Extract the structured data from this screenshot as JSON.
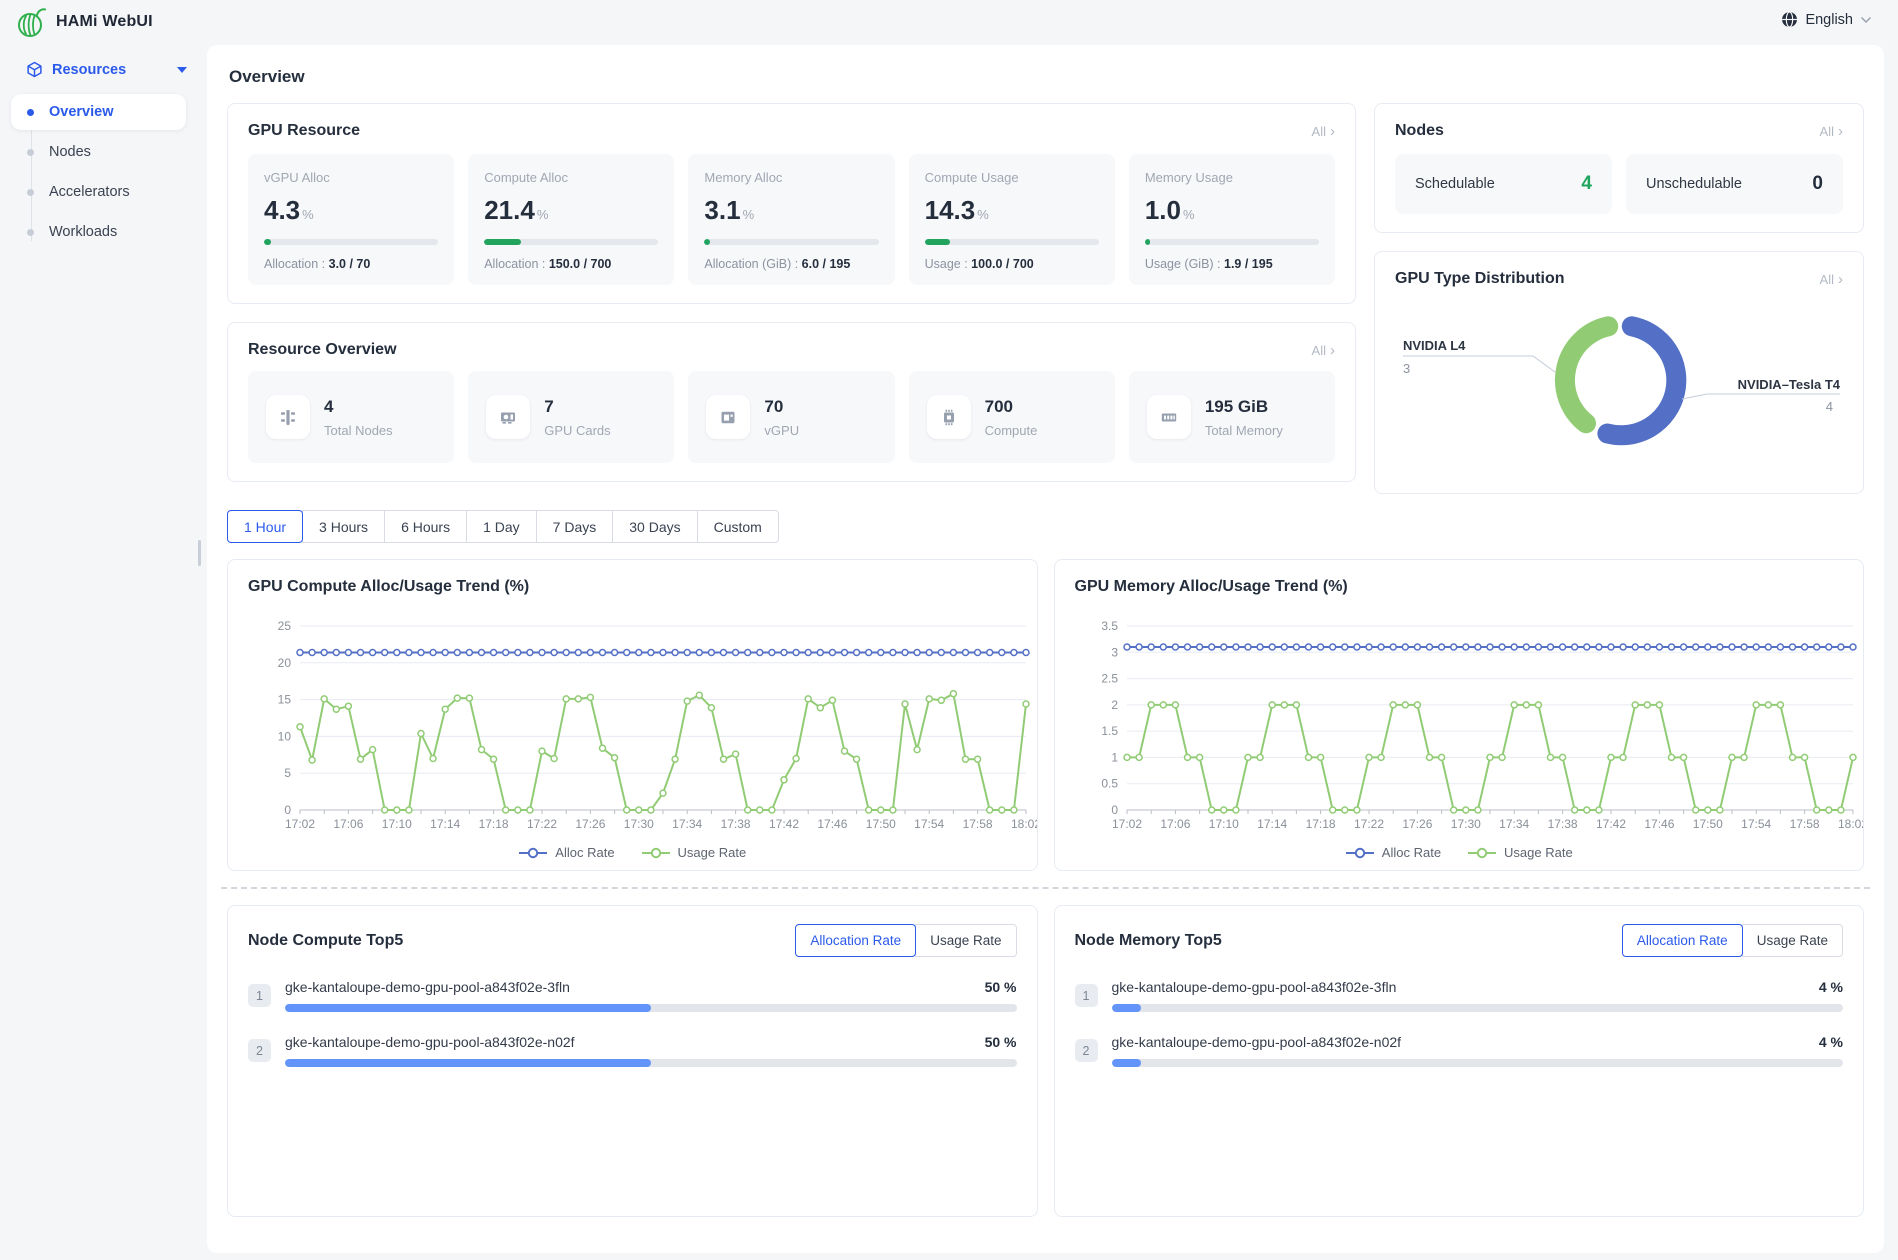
{
  "colors": {
    "accent_blue": "#2b5aeb",
    "success_green": "#22a45f",
    "chart_blue": "#5470c6",
    "chart_green": "#91cc75",
    "bar_blue": "#6394f9"
  },
  "header": {
    "app_title": "HAMi WebUI",
    "language": "English",
    "logo_icon": "hami-melon-logo",
    "language_icon": "globe-icon"
  },
  "sidebar": {
    "group": {
      "label": "Resources",
      "icon": "cube-icon"
    },
    "items": [
      {
        "label": "Overview",
        "active": true
      },
      {
        "label": "Nodes",
        "active": false
      },
      {
        "label": "Accelerators",
        "active": false
      },
      {
        "label": "Workloads",
        "active": false
      }
    ]
  },
  "page": {
    "title": "Overview"
  },
  "common": {
    "all": "All",
    "chevron": "›"
  },
  "gpu_resource": {
    "title": "GPU Resource",
    "stats": [
      {
        "label": "vGPU Alloc",
        "value": "4.3",
        "unit": "%",
        "percent": 4.3,
        "detail_label": "Allocation : ",
        "detail_value": "3.0 / 70"
      },
      {
        "label": "Compute Alloc",
        "value": "21.4",
        "unit": "%",
        "percent": 21.4,
        "detail_label": "Allocation : ",
        "detail_value": "150.0 / 700"
      },
      {
        "label": "Memory Alloc",
        "value": "3.1",
        "unit": "%",
        "percent": 3.1,
        "detail_label": "Allocation (GiB) : ",
        "detail_value": "6.0 / 195"
      },
      {
        "label": "Compute Usage",
        "value": "14.3",
        "unit": "%",
        "percent": 14.3,
        "detail_label": "Usage : ",
        "detail_value": "100.0 / 700"
      },
      {
        "label": "Memory Usage",
        "value": "1.0",
        "unit": "%",
        "percent": 1.0,
        "detail_label": "Usage (GiB) : ",
        "detail_value": "1.9 / 195"
      }
    ]
  },
  "nodes_card": {
    "title": "Nodes",
    "tiles": [
      {
        "label": "Schedulable",
        "value": "4"
      },
      {
        "label": "Unschedulable",
        "value": "0"
      }
    ]
  },
  "gpu_type": {
    "title": "GPU Type Distribution",
    "items": [
      {
        "name": "NVIDIA L4",
        "value": "3"
      },
      {
        "name": "NVIDIA–Tesla T4",
        "value": "4"
      }
    ]
  },
  "resource_overview": {
    "title": "Resource Overview",
    "items": [
      {
        "icon": "node-icon",
        "value": "4",
        "label": "Total Nodes"
      },
      {
        "icon": "gpu-card-icon",
        "value": "7",
        "label": "GPU Cards"
      },
      {
        "icon": "vgpu-icon",
        "value": "70",
        "label": "vGPU"
      },
      {
        "icon": "chip-icon",
        "value": "700",
        "label": "Compute"
      },
      {
        "icon": "memory-icon",
        "value": "195 GiB",
        "label": "Total Memory"
      }
    ]
  },
  "time_tabs": {
    "options": [
      "1 Hour",
      "3 Hours",
      "6 Hours",
      "1 Day",
      "7 Days",
      "30 Days",
      "Custom"
    ],
    "active_index": 0
  },
  "top5": {
    "toggle": {
      "allocation": "Allocation Rate",
      "usage": "Usage Rate",
      "active": "allocation"
    },
    "cards": [
      {
        "title": "Node Compute Top5",
        "rows": [
          {
            "rank": "1",
            "name": "gke-kantaloupe-demo-gpu-pool-a843f02e-3fln",
            "value": "50 %",
            "percent": 50
          },
          {
            "rank": "2",
            "name": "gke-kantaloupe-demo-gpu-pool-a843f02e-n02f",
            "value": "50 %",
            "percent": 50
          }
        ]
      },
      {
        "title": "Node Memory Top5",
        "rows": [
          {
            "rank": "1",
            "name": "gke-kantaloupe-demo-gpu-pool-a843f02e-3fln",
            "value": "4 %",
            "percent": 4
          },
          {
            "rank": "2",
            "name": "gke-kantaloupe-demo-gpu-pool-a843f02e-n02f",
            "value": "4 %",
            "percent": 4
          }
        ]
      }
    ]
  },
  "chart_data": [
    {
      "type": "pie",
      "title": "GPU Type Distribution",
      "labels": [
        "NVIDIA–Tesla T4",
        "NVIDIA L4"
      ],
      "values": [
        4,
        3
      ],
      "colors": [
        "#5470c6",
        "#91cc75"
      ],
      "donut": true
    },
    {
      "type": "line",
      "title": "GPU Compute Alloc/Usage Trend (%)",
      "points": 61,
      "interval_minutes": 1,
      "x_tick_labels": [
        "17:02",
        "17:06",
        "17:10",
        "17:14",
        "17:18",
        "17:22",
        "17:26",
        "17:30",
        "17:34",
        "17:38",
        "17:42",
        "17:46",
        "17:50",
        "17:54",
        "17:58",
        "18:02"
      ],
      "ylim": [
        0,
        25
      ],
      "y_ticks": [
        0,
        5,
        10,
        15,
        20,
        25
      ],
      "legend_position": "bottom",
      "series": [
        {
          "name": "Alloc Rate",
          "color": "#5470c6",
          "values_constant": 21.4
        },
        {
          "name": "Usage Rate",
          "color": "#91cc75",
          "values": [
            11.3,
            6.8,
            15.1,
            13.7,
            14.1,
            6.9,
            8.2,
            0,
            0,
            0,
            10.4,
            7.0,
            13.7,
            15.2,
            15.2,
            8.2,
            6.9,
            0,
            0,
            0,
            8.0,
            7.0,
            15.1,
            15.1,
            15.3,
            8.4,
            7.1,
            0,
            0,
            0,
            2.3,
            6.9,
            14.8,
            15.6,
            13.9,
            6.9,
            7.6,
            0,
            0,
            0,
            4.1,
            7.0,
            15.1,
            13.9,
            14.9,
            8.0,
            6.9,
            0,
            0,
            0,
            14.4,
            8.2,
            15.1,
            14.9,
            15.8,
            6.9,
            6.9,
            0,
            0,
            0,
            14.4
          ]
        }
      ]
    },
    {
      "type": "line",
      "title": "GPU Memory Alloc/Usage Trend (%)",
      "points": 61,
      "interval_minutes": 1,
      "x_tick_labels": [
        "17:02",
        "17:06",
        "17:10",
        "17:14",
        "17:18",
        "17:22",
        "17:26",
        "17:30",
        "17:34",
        "17:38",
        "17:42",
        "17:46",
        "17:50",
        "17:54",
        "17:58",
        "18:02"
      ],
      "ylim": [
        0,
        3.5
      ],
      "y_ticks": [
        0,
        0.5,
        1,
        1.5,
        2,
        2.5,
        3,
        3.5
      ],
      "legend_position": "bottom",
      "series": [
        {
          "name": "Alloc Rate",
          "color": "#5470c6",
          "values_constant": 3.1
        },
        {
          "name": "Usage Rate",
          "color": "#91cc75",
          "values": [
            1,
            1,
            2,
            2,
            2,
            1,
            1,
            0,
            0,
            0,
            1,
            1,
            2,
            2,
            2,
            1,
            1,
            0,
            0,
            0,
            1,
            1,
            2,
            2,
            2,
            1,
            1,
            0,
            0,
            0,
            1,
            1,
            2,
            2,
            2,
            1,
            1,
            0,
            0,
            0,
            1,
            1,
            2,
            2,
            2,
            1,
            1,
            0,
            0,
            0,
            1,
            1,
            2,
            2,
            2,
            1,
            1,
            0,
            0,
            0,
            1
          ]
        }
      ]
    }
  ]
}
